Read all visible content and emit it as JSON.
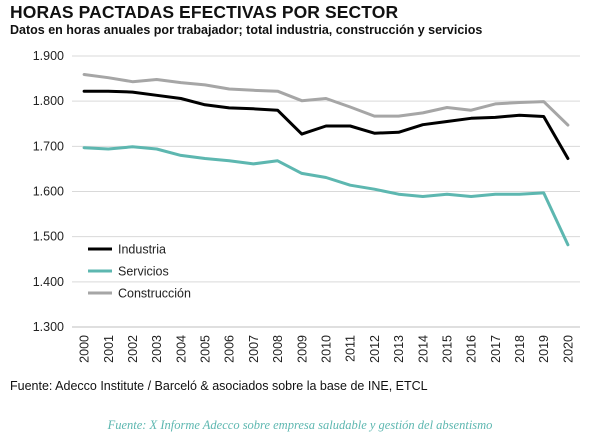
{
  "header": {
    "title": "HORAS PACTADAS EFECTIVAS POR SECTOR",
    "subtitle": "Datos en horas anuales por trabajador; total industria, construcción y servicios"
  },
  "chart_data": {
    "type": "line",
    "x": [
      "2000",
      "2001",
      "2002",
      "2003",
      "2004",
      "2005",
      "2006",
      "2007",
      "2008",
      "2009",
      "2010",
      "2011",
      "2012",
      "2013",
      "2014",
      "2015",
      "2016",
      "2017",
      "2018",
      "2019",
      "2020"
    ],
    "ylim": [
      1300,
      1900
    ],
    "yticks": [
      1300,
      1400,
      1500,
      1600,
      1700,
      1800,
      1900
    ],
    "ytick_labels": [
      "1.300",
      "1.400",
      "1.500",
      "1.600",
      "1.700",
      "1.800",
      "1.900"
    ],
    "grid": true,
    "legend_position": "bottom-left",
    "series": [
      {
        "name": "Industria",
        "color": "#000000",
        "values": [
          1822,
          1822,
          1820,
          1813,
          1806,
          1792,
          1785,
          1783,
          1780,
          1727,
          1745,
          1745,
          1729,
          1731,
          1748,
          1755,
          1762,
          1764,
          1769,
          1766,
          1673
        ]
      },
      {
        "name": "Servicios",
        "color": "#5db7b0",
        "values": [
          1697,
          1694,
          1699,
          1694,
          1680,
          1673,
          1668,
          1661,
          1668,
          1640,
          1631,
          1614,
          1605,
          1594,
          1589,
          1594,
          1589,
          1594,
          1594,
          1597,
          1482
        ]
      },
      {
        "name": "Construcción",
        "color": "#a6a6a6",
        "values": [
          1859,
          1852,
          1843,
          1848,
          1841,
          1836,
          1827,
          1824,
          1822,
          1801,
          1806,
          1787,
          1767,
          1767,
          1774,
          1786,
          1780,
          1794,
          1797,
          1799,
          1747
        ]
      }
    ]
  },
  "footer": {
    "source": "Fuente: Adecco Institute / Barceló & asociados sobre la base de INE, ETCL",
    "caption": "Fuente: X Informe Adecco sobre empresa saludable y gestión del absentismo"
  }
}
